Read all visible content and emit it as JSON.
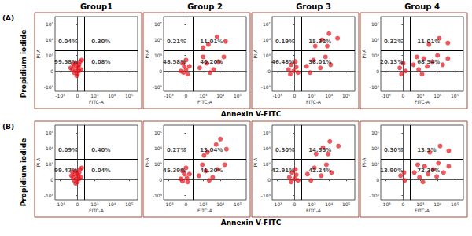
{
  "group_titles": [
    "Group1",
    "Group 2",
    "Group 3",
    "Group 4"
  ],
  "row_labels": [
    "(A)",
    "(B)"
  ],
  "row_y_title": "Propidium iodide",
  "row_x_title": "Annexin V-FITC",
  "chart_data": [
    {
      "type": "scatter",
      "xlabel": "FITC-A",
      "ylabel": "PI-A",
      "color": "#e3121b",
      "xlim": [
        -1.3,
        3.5
      ],
      "ylim": [
        -1.3,
        3.5
      ],
      "xticks": [
        {
          "value": -1,
          "label": "-10³"
        },
        0,
        {
          "value": 1,
          "label": "10³"
        },
        {
          "value": 2,
          "label": "10⁴"
        },
        {
          "value": 3,
          "label": "10⁵"
        }
      ],
      "yticks": [
        {
          "value": -1,
          "label": "-10³"
        },
        0,
        {
          "value": 1,
          "label": "10³"
        },
        {
          "value": 2,
          "label": "10⁴"
        },
        {
          "value": 3,
          "label": "10⁵"
        }
      ],
      "gates": {
        "x": 0.4,
        "y": 1.3
      },
      "quadrant_values": [
        0.04,
        0.3,
        99.58,
        0.08
      ],
      "quadrant_labels": [
        "0.04%",
        "0.30%",
        "99.58%",
        "0.08%"
      ],
      "points": [
        [
          -0.3,
          0.1
        ],
        [
          -0.2,
          0.3
        ],
        [
          -0.1,
          0.0
        ],
        [
          0.0,
          0.2
        ],
        [
          0.1,
          0.4
        ],
        [
          -0.2,
          -0.1
        ],
        [
          0.0,
          -0.2
        ],
        [
          0.2,
          0.1
        ],
        [
          -0.1,
          0.5
        ],
        [
          0.1,
          0.0
        ],
        [
          -0.4,
          0.2
        ],
        [
          0.05,
          0.3
        ],
        [
          0.15,
          0.6
        ],
        [
          -0.25,
          0.45
        ],
        [
          0.25,
          0.7
        ],
        [
          -0.05,
          -0.3
        ]
      ]
    },
    {
      "type": "scatter",
      "xlabel": "FITC-A",
      "ylabel": "PI-A",
      "color": "#e3121b",
      "xlim": [
        -1.3,
        3.5
      ],
      "ylim": [
        -1.3,
        3.5
      ],
      "xticks": [
        {
          "value": -1,
          "label": "-10³"
        },
        0,
        {
          "value": 1,
          "label": "10³"
        },
        {
          "value": 2,
          "label": "10⁴"
        },
        {
          "value": 3,
          "label": "10⁵"
        }
      ],
      "yticks": [
        {
          "value": -1,
          "label": "-10³"
        },
        0,
        {
          "value": 1,
          "label": "10³"
        },
        {
          "value": 2,
          "label": "10⁴"
        },
        {
          "value": 3,
          "label": "10⁵"
        }
      ],
      "gates": {
        "x": 0.4,
        "y": 1.3
      },
      "quadrant_values": [
        0.21,
        11.01,
        48.58,
        40.2
      ],
      "quadrant_labels": [
        "0.21%",
        "11.01%",
        "48.58%",
        "40.20%"
      ],
      "points": [
        [
          -0.3,
          0.0
        ],
        [
          -0.1,
          0.3
        ],
        [
          0.0,
          0.1
        ],
        [
          0.1,
          -0.2
        ],
        [
          -0.2,
          0.5
        ],
        [
          0.2,
          0.3
        ],
        [
          0.0,
          0.7
        ],
        [
          -0.15,
          -0.1
        ],
        [
          0.8,
          0.2
        ],
        [
          1.2,
          0.5
        ],
        [
          1.6,
          0.1
        ],
        [
          1.0,
          0.9
        ],
        [
          1.9,
          0.6
        ],
        [
          1.4,
          -0.1
        ],
        [
          2.2,
          0.9
        ],
        [
          1.3,
          1.7
        ],
        [
          1.8,
          2.2
        ],
        [
          2.3,
          1.9
        ],
        [
          1.0,
          1.5
        ]
      ]
    },
    {
      "type": "scatter",
      "xlabel": "FITC-A",
      "ylabel": "PI-A",
      "color": "#e3121b",
      "xlim": [
        -1.3,
        3.5
      ],
      "ylim": [
        -1.3,
        3.5
      ],
      "xticks": [
        {
          "value": -1,
          "label": "-10³"
        },
        0,
        {
          "value": 1,
          "label": "10³"
        },
        {
          "value": 2,
          "label": "10⁴"
        },
        {
          "value": 3,
          "label": "10⁵"
        }
      ],
      "yticks": [
        {
          "value": -1,
          "label": "-10³"
        },
        0,
        {
          "value": 1,
          "label": "10³"
        },
        {
          "value": 2,
          "label": "10⁴"
        },
        {
          "value": 3,
          "label": "10⁵"
        }
      ],
      "gates": {
        "x": 0.4,
        "y": 1.3
      },
      "quadrant_values": [
        0.19,
        15.32,
        46.48,
        38.01
      ],
      "quadrant_labels": [
        "0.19%",
        "15.32%",
        "46.48%",
        "38.01%"
      ],
      "points": [
        [
          -0.35,
          0.1
        ],
        [
          -0.2,
          0.4
        ],
        [
          -0.05,
          0.0
        ],
        [
          0.1,
          0.25
        ],
        [
          -0.25,
          -0.2
        ],
        [
          0.05,
          0.6
        ],
        [
          0.2,
          -0.1
        ],
        [
          0.7,
          0.3
        ],
        [
          1.1,
          0.7
        ],
        [
          1.5,
          0.2
        ],
        [
          0.9,
          -0.1
        ],
        [
          1.8,
          0.9
        ],
        [
          2.1,
          0.4
        ],
        [
          1.2,
          1.6
        ],
        [
          1.6,
          2.0
        ],
        [
          2.0,
          2.4
        ],
        [
          2.5,
          2.1
        ],
        [
          1.9,
          1.6
        ]
      ]
    },
    {
      "type": "scatter",
      "xlabel": "FITC-A",
      "ylabel": "PI-A",
      "color": "#e3121b",
      "xlim": [
        -1.3,
        3.5
      ],
      "ylim": [
        -1.3,
        3.5
      ],
      "xticks": [
        {
          "value": -1,
          "label": "-10³"
        },
        0,
        {
          "value": 1,
          "label": "10³"
        },
        {
          "value": 2,
          "label": "10⁴"
        },
        {
          "value": 3,
          "label": "10⁵"
        }
      ],
      "yticks": [
        {
          "value": -1,
          "label": "-10³"
        },
        0,
        {
          "value": 1,
          "label": "10³"
        },
        {
          "value": 2,
          "label": "10⁴"
        },
        {
          "value": 3,
          "label": "10⁵"
        }
      ],
      "gates": {
        "x": 0.4,
        "y": 1.3
      },
      "quadrant_values": [
        0.32,
        11.01,
        20.13,
        68.54
      ],
      "quadrant_labels": [
        "0.32%",
        "11.01%",
        "20.13%",
        "68.54%"
      ],
      "points": [
        [
          -0.2,
          0.2
        ],
        [
          0.0,
          0.5
        ],
        [
          0.15,
          0.0
        ],
        [
          -0.1,
          -0.2
        ],
        [
          0.6,
          0.4
        ],
        [
          0.9,
          0.1
        ],
        [
          1.2,
          0.8
        ],
        [
          1.4,
          0.3
        ],
        [
          1.7,
          0.6
        ],
        [
          2.0,
          1.0
        ],
        [
          2.3,
          0.4
        ],
        [
          1.1,
          -0.2
        ],
        [
          0.8,
          0.9
        ],
        [
          2.6,
          0.8
        ],
        [
          1.5,
          1.7
        ],
        [
          2.1,
          2.1
        ],
        [
          2.6,
          1.8
        ]
      ]
    },
    {
      "type": "scatter",
      "xlabel": "FITC-A",
      "ylabel": "PI-A",
      "color": "#e3121b",
      "xlim": [
        -1.3,
        3.5
      ],
      "ylim": [
        -1.3,
        3.5
      ],
      "xticks": [
        {
          "value": -1,
          "label": "-10³"
        },
        0,
        {
          "value": 1,
          "label": "10³"
        },
        {
          "value": 2,
          "label": "10⁴"
        },
        {
          "value": 3,
          "label": "10⁵"
        }
      ],
      "yticks": [
        {
          "value": -1,
          "label": "-10³"
        },
        0,
        {
          "value": 1,
          "label": "10³"
        },
        {
          "value": 2,
          "label": "10⁴"
        },
        {
          "value": 3,
          "label": "10⁵"
        }
      ],
      "gates": {
        "x": 0.4,
        "y": 1.3
      },
      "quadrant_values": [
        0.09,
        0.4,
        99.47,
        0.04
      ],
      "quadrant_labels": [
        "0.09%",
        "0.40%",
        "99.47%",
        "0.04%"
      ],
      "points": [
        [
          -0.25,
          0.15
        ],
        [
          -0.15,
          0.35
        ],
        [
          -0.05,
          0.05
        ],
        [
          0.05,
          0.25
        ],
        [
          0.1,
          0.45
        ],
        [
          -0.2,
          -0.05
        ],
        [
          0.0,
          -0.15
        ],
        [
          0.2,
          0.15
        ],
        [
          -0.1,
          0.55
        ],
        [
          0.1,
          0.05
        ],
        [
          -0.35,
          0.25
        ],
        [
          0.0,
          0.35
        ],
        [
          0.15,
          0.65
        ],
        [
          -0.3,
          0.5
        ],
        [
          0.25,
          0.75
        ],
        [
          -0.1,
          -0.25
        ]
      ]
    },
    {
      "type": "scatter",
      "xlabel": "FITC-A",
      "ylabel": "PI-A",
      "color": "#e3121b",
      "xlim": [
        -1.3,
        3.5
      ],
      "ylim": [
        -1.3,
        3.5
      ],
      "xticks": [
        {
          "value": -1,
          "label": "-10³"
        },
        0,
        {
          "value": 1,
          "label": "10³"
        },
        {
          "value": 2,
          "label": "10⁴"
        },
        {
          "value": 3,
          "label": "10⁵"
        }
      ],
      "yticks": [
        {
          "value": -1,
          "label": "-10³"
        },
        0,
        {
          "value": 1,
          "label": "10³"
        },
        {
          "value": 2,
          "label": "10⁴"
        },
        {
          "value": 3,
          "label": "10⁵"
        }
      ],
      "gates": {
        "x": 0.4,
        "y": 1.3
      },
      "quadrant_values": [
        0.27,
        13.04,
        45.39,
        41.3
      ],
      "quadrant_labels": [
        "0.27%",
        "13.04%",
        "45.39%",
        "41.30%"
      ],
      "points": [
        [
          -0.3,
          0.05
        ],
        [
          -0.1,
          0.35
        ],
        [
          0.05,
          0.1
        ],
        [
          0.1,
          -0.15
        ],
        [
          -0.2,
          0.55
        ],
        [
          0.2,
          0.35
        ],
        [
          0.0,
          0.75
        ],
        [
          -0.2,
          -0.1
        ],
        [
          0.75,
          0.25
        ],
        [
          1.15,
          0.55
        ],
        [
          1.55,
          0.15
        ],
        [
          0.95,
          0.95
        ],
        [
          1.85,
          0.65
        ],
        [
          1.35,
          -0.05
        ],
        [
          2.25,
          0.95
        ],
        [
          1.25,
          1.75
        ],
        [
          1.75,
          2.25
        ],
        [
          2.35,
          1.95
        ],
        [
          1.05,
          1.55
        ],
        [
          2.0,
          2.6
        ]
      ]
    },
    {
      "type": "scatter",
      "xlabel": "FITC-A",
      "ylabel": "PI-A",
      "color": "#e3121b",
      "xlim": [
        -1.3,
        3.5
      ],
      "ylim": [
        -1.3,
        3.5
      ],
      "xticks": [
        {
          "value": -1,
          "label": "-10³"
        },
        0,
        {
          "value": 1,
          "label": "10³"
        },
        {
          "value": 2,
          "label": "10⁴"
        },
        {
          "value": 3,
          "label": "10⁵"
        }
      ],
      "yticks": [
        {
          "value": -1,
          "label": "-10³"
        },
        0,
        {
          "value": 1,
          "label": "10³"
        },
        {
          "value": 2,
          "label": "10⁴"
        },
        {
          "value": 3,
          "label": "10⁵"
        }
      ],
      "gates": {
        "x": 0.4,
        "y": 1.3
      },
      "quadrant_values": [
        0.3,
        14.55,
        42.91,
        42.24
      ],
      "quadrant_labels": [
        "0.30%",
        "14.55%",
        "42.91%",
        "42.24%"
      ],
      "points": [
        [
          -0.3,
          0.15
        ],
        [
          -0.15,
          0.45
        ],
        [
          0.0,
          0.05
        ],
        [
          0.1,
          0.3
        ],
        [
          -0.2,
          -0.15
        ],
        [
          0.05,
          0.65
        ],
        [
          0.2,
          -0.05
        ],
        [
          0.75,
          0.35
        ],
        [
          1.15,
          0.75
        ],
        [
          1.55,
          0.25
        ],
        [
          0.95,
          -0.05
        ],
        [
          1.85,
          0.95
        ],
        [
          2.15,
          0.45
        ],
        [
          1.25,
          1.65
        ],
        [
          1.65,
          2.05
        ],
        [
          2.05,
          2.45
        ],
        [
          2.55,
          2.15
        ],
        [
          1.95,
          1.65
        ]
      ]
    },
    {
      "type": "scatter",
      "xlabel": "FITC-A",
      "ylabel": "PI-A",
      "color": "#e3121b",
      "xlim": [
        -1.3,
        3.5
      ],
      "ylim": [
        -1.3,
        3.5
      ],
      "xticks": [
        {
          "value": -1,
          "label": "-10³"
        },
        0,
        {
          "value": 1,
          "label": "10³"
        },
        {
          "value": 2,
          "label": "10⁴"
        },
        {
          "value": 3,
          "label": "10⁵"
        }
      ],
      "yticks": [
        {
          "value": -1,
          "label": "-10³"
        },
        0,
        {
          "value": 1,
          "label": "10³"
        },
        {
          "value": 2,
          "label": "10⁴"
        },
        {
          "value": 3,
          "label": "10⁵"
        }
      ],
      "gates": {
        "x": 0.4,
        "y": 1.3
      },
      "quadrant_values": [
        0.3,
        13.5,
        13.9,
        72.3
      ],
      "quadrant_labels": [
        "0.30%",
        "13.5%",
        "13.90%",
        "72.30%"
      ],
      "points": [
        [
          -0.15,
          0.25
        ],
        [
          0.05,
          0.45
        ],
        [
          0.1,
          -0.05
        ],
        [
          0.65,
          0.45
        ],
        [
          0.95,
          0.15
        ],
        [
          1.25,
          0.85
        ],
        [
          1.45,
          0.35
        ],
        [
          1.75,
          0.65
        ],
        [
          2.05,
          1.05
        ],
        [
          2.35,
          0.45
        ],
        [
          1.15,
          -0.15
        ],
        [
          0.85,
          0.95
        ],
        [
          2.65,
          0.85
        ],
        [
          1.95,
          0.2
        ],
        [
          1.55,
          1.75
        ],
        [
          2.15,
          2.15
        ],
        [
          2.65,
          1.85
        ]
      ]
    }
  ]
}
